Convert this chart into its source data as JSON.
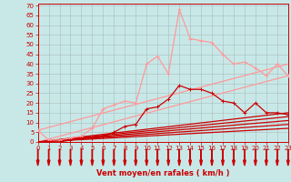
{
  "bg_color": "#c8e8e8",
  "grid_color": "#aabbbb",
  "xlabel": "Vent moyen/en rafales ( km/h )",
  "text_color": "#cc0000",
  "x_ticks": [
    0,
    1,
    2,
    3,
    4,
    5,
    6,
    7,
    8,
    9,
    10,
    11,
    12,
    13,
    14,
    15,
    16,
    17,
    18,
    19,
    20,
    21,
    22,
    23
  ],
  "y_ticks": [
    0,
    5,
    10,
    15,
    20,
    25,
    30,
    35,
    40,
    45,
    50,
    55,
    60,
    65,
    70
  ],
  "xlim": [
    0,
    23
  ],
  "ylim": [
    0,
    71
  ],
  "series": [
    {
      "color": "#ff9999",
      "linewidth": 0.9,
      "marker": "+",
      "markersize": 3,
      "zorder": 3,
      "data": [
        6,
        1,
        1,
        2,
        3,
        7,
        17,
        19,
        21,
        20,
        40,
        44,
        35,
        68,
        53,
        52,
        51,
        45,
        40,
        41,
        38,
        34,
        40,
        34
      ]
    },
    {
      "color": "#ff9999",
      "linewidth": 0.9,
      "marker": "+",
      "markersize": 3,
      "zorder": 2,
      "linear": [
        6,
        40
      ]
    },
    {
      "color": "#ff9999",
      "linewidth": 0.9,
      "marker": null,
      "zorder": 2,
      "linear": [
        0,
        34
      ]
    },
    {
      "color": "#cc0000",
      "linewidth": 0.9,
      "marker": "+",
      "markersize": 3,
      "zorder": 3,
      "data": [
        0,
        0,
        0,
        1,
        2,
        2,
        3,
        5,
        8,
        9,
        17,
        18,
        22,
        29,
        27,
        27,
        25,
        21,
        20,
        15,
        20,
        15,
        15,
        14
      ]
    },
    {
      "color": "#cc0000",
      "linewidth": 0.9,
      "marker": null,
      "zorder": 2,
      "linear": [
        0,
        15
      ]
    },
    {
      "color": "#cc0000",
      "linewidth": 0.9,
      "marker": null,
      "zorder": 2,
      "linear": [
        0,
        13
      ]
    },
    {
      "color": "#cc0000",
      "linewidth": 0.9,
      "marker": null,
      "zorder": 2,
      "linear": [
        0,
        11
      ]
    },
    {
      "color": "#cc0000",
      "linewidth": 0.9,
      "marker": null,
      "zorder": 2,
      "linear": [
        0,
        9
      ]
    },
    {
      "color": "#cc0000",
      "linewidth": 0.9,
      "marker": null,
      "zorder": 2,
      "linear": [
        0,
        7
      ]
    }
  ]
}
